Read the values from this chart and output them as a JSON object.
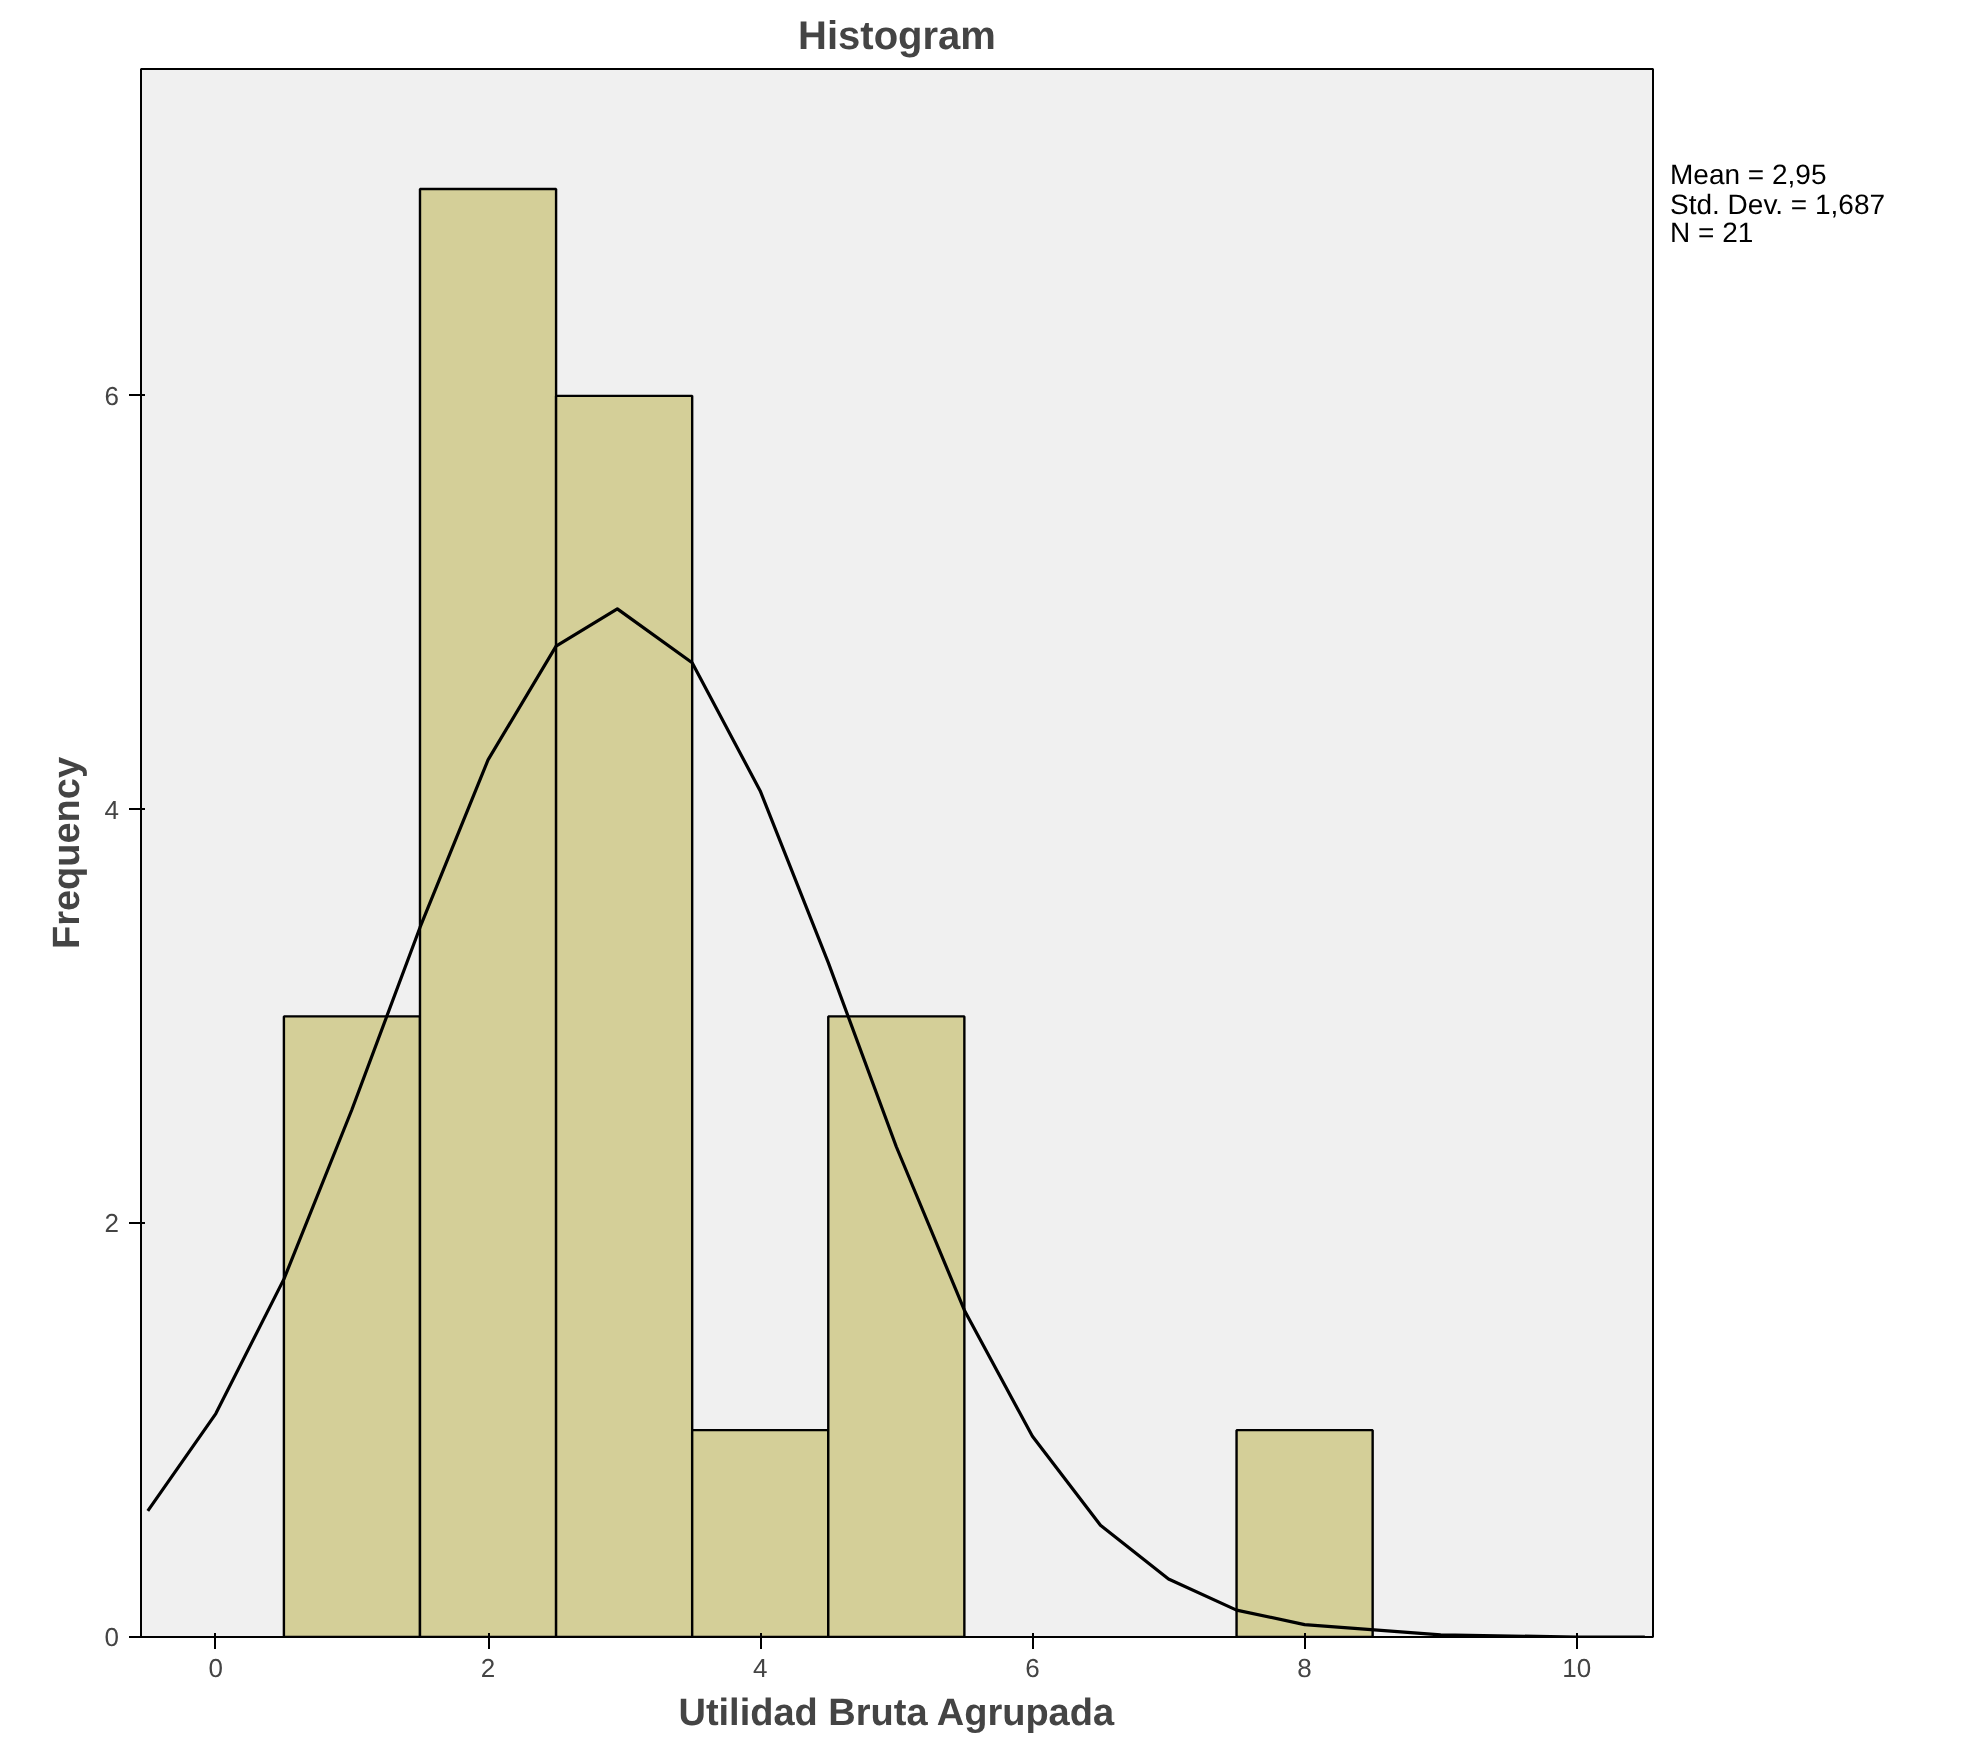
{
  "chart_data": {
    "type": "histogram",
    "title": "Histogram",
    "xlabel": "Utilidad Bruta Agrupada",
    "ylabel": "Frequency",
    "bins": [
      0.5,
      1.5,
      2.5,
      3.5,
      4.5,
      5.5,
      6.5,
      7.5,
      8.5
    ],
    "values": [
      3,
      7,
      6,
      1,
      3,
      0,
      0,
      1
    ],
    "color": "#d4cf98",
    "series": [
      {
        "type": "line",
        "color": "#000000",
        "x": [
          -0.5,
          0,
          0.5,
          1,
          1.5,
          2,
          2.5,
          2.95,
          3.5,
          4,
          4.5,
          5,
          5.5,
          6,
          6.5,
          7,
          7.5,
          8,
          9,
          10,
          10.5
        ],
        "values": [
          0.61,
          1.08,
          1.73,
          2.55,
          3.43,
          4.24,
          4.79,
          4.97,
          4.71,
          4.09,
          3.26,
          2.37,
          1.58,
          0.97,
          0.54,
          0.28,
          0.13,
          0.06,
          0.01,
          0,
          0
        ]
      }
    ],
    "xlim": [
      -0.55,
      10.56
    ],
    "ylim": [
      0,
      7.58
    ],
    "xticks": [
      0,
      2,
      4,
      6,
      8,
      10
    ],
    "yticks": [
      0,
      2,
      4,
      6
    ],
    "grid": false,
    "annotations": [
      "Mean = 2,95",
      "Std. Dev. = 1,687",
      "N = 21"
    ]
  }
}
